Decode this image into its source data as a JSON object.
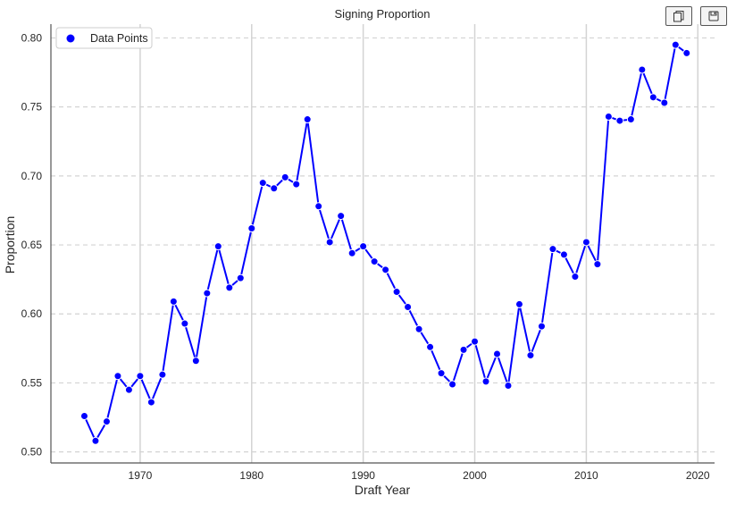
{
  "toolbar": {
    "copy_icon": "copy-icon",
    "save_icon": "save-icon"
  },
  "colors": {
    "line": "#0000ff",
    "marker_edge": "#ffffff",
    "grid": "#d3d3d3",
    "axis": "#555555",
    "text": "#262626"
  },
  "chart_data": {
    "type": "line",
    "title": "Signing Proportion",
    "xlabel": "Draft Year",
    "ylabel": "Proportion",
    "xlim": [
      1962,
      2021.5
    ],
    "ylim": [
      0.492,
      0.81
    ],
    "xticks": [
      1970,
      1980,
      1990,
      2000,
      2010,
      2020
    ],
    "yticks": [
      0.5,
      0.55,
      0.6,
      0.65,
      0.7,
      0.75,
      0.8
    ],
    "xtick_labels": [
      "1970",
      "1980",
      "1990",
      "2000",
      "2010",
      "2020"
    ],
    "ytick_labels": [
      "0.50",
      "0.55",
      "0.60",
      "0.65",
      "0.70",
      "0.75",
      "0.80"
    ],
    "grid": {
      "x": "solid",
      "y": "dashed"
    },
    "legend": {
      "position": "top-left",
      "entries": [
        "Data Points"
      ]
    },
    "series": [
      {
        "name": "Data Points",
        "x": [
          1965,
          1966,
          1967,
          1968,
          1969,
          1970,
          1971,
          1972,
          1973,
          1974,
          1975,
          1976,
          1977,
          1978,
          1979,
          1980,
          1981,
          1982,
          1983,
          1984,
          1985,
          1986,
          1987,
          1988,
          1989,
          1990,
          1991,
          1992,
          1993,
          1994,
          1995,
          1996,
          1997,
          1998,
          1999,
          2000,
          2001,
          2002,
          2003,
          2004,
          2005,
          2006,
          2007,
          2008,
          2009,
          2010,
          2011,
          2012,
          2013,
          2014,
          2015,
          2016,
          2017,
          2018,
          2019
        ],
        "y": [
          0.526,
          0.508,
          0.522,
          0.555,
          0.545,
          0.555,
          0.536,
          0.556,
          0.609,
          0.593,
          0.566,
          0.615,
          0.649,
          0.619,
          0.626,
          0.662,
          0.695,
          0.691,
          0.699,
          0.694,
          0.741,
          0.678,
          0.652,
          0.671,
          0.644,
          0.649,
          0.638,
          0.632,
          0.616,
          0.605,
          0.589,
          0.576,
          0.557,
          0.549,
          0.574,
          0.58,
          0.551,
          0.571,
          0.548,
          0.607,
          0.57,
          0.591,
          0.647,
          0.643,
          0.627,
          0.652,
          0.636,
          0.743,
          0.74,
          0.741,
          0.777,
          0.757,
          0.753,
          0.795,
          0.789
        ]
      }
    ]
  }
}
